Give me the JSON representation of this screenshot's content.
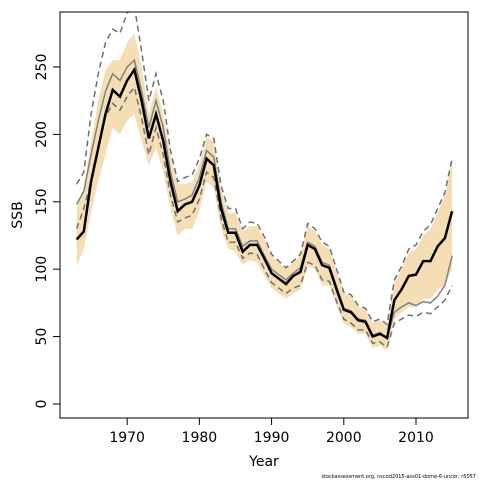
{
  "chart_data": {
    "type": "line",
    "x_label": "Year",
    "y_label": "SSB",
    "footnote": "stockassessment.org, nscod2015-ass01-dome-6-uncor, r5057",
    "x": [
      1963,
      1964,
      1965,
      1966,
      1967,
      1968,
      1969,
      1970,
      1971,
      1972,
      1973,
      1974,
      1975,
      1976,
      1977,
      1978,
      1979,
      1980,
      1981,
      1982,
      1983,
      1984,
      1985,
      1986,
      1987,
      1988,
      1989,
      1990,
      1991,
      1992,
      1993,
      1994,
      1995,
      1996,
      1997,
      1998,
      1999,
      2000,
      2001,
      2002,
      2003,
      2004,
      2005,
      2006,
      2007,
      2008,
      2009,
      2010,
      2011,
      2012,
      2013,
      2014,
      2015
    ],
    "band": {
      "color": "#f5deb3",
      "upper": [
        145,
        160,
        195,
        225,
        248,
        255,
        255,
        268,
        275,
        250,
        215,
        235,
        215,
        185,
        163,
        163,
        165,
        178,
        198,
        195,
        160,
        142,
        142,
        128,
        132,
        132,
        122,
        110,
        105,
        100,
        105,
        110,
        132,
        128,
        118,
        115,
        98,
        82,
        80,
        72,
        70,
        60,
        62,
        58,
        90,
        100,
        112,
        115,
        125,
        130,
        142,
        155,
        180
      ],
      "lower": [
        102,
        115,
        142,
        165,
        185,
        205,
        200,
        210,
        215,
        195,
        177,
        190,
        172,
        145,
        125,
        130,
        130,
        143,
        165,
        160,
        130,
        115,
        113,
        103,
        107,
        105,
        95,
        86,
        82,
        78,
        82,
        85,
        102,
        100,
        88,
        88,
        73,
        60,
        57,
        52,
        52,
        42,
        43,
        40,
        63,
        68,
        72,
        72,
        78,
        78,
        85,
        88,
        100
      ]
    },
    "series": [
      {
        "color": "#808080",
        "dash": false,
        "width": 1.5,
        "values": [
          148,
          158,
          185,
          210,
          232,
          245,
          240,
          250,
          255,
          232,
          205,
          225,
          205,
          172,
          150,
          152,
          155,
          168,
          188,
          183,
          150,
          130,
          130,
          117,
          121,
          121,
          110,
          100,
          96,
          92,
          97,
          101,
          120,
          117,
          105,
          103,
          87,
          71,
          69,
          63,
          62,
          51,
          53,
          49,
          68,
          72,
          75,
          73,
          76,
          75,
          80,
          88,
          110
        ]
      },
      {
        "color": "#707070",
        "dash": true,
        "width": 1.5,
        "values": [
          163,
          172,
          215,
          245,
          268,
          278,
          275,
          290,
          295,
          262,
          225,
          245,
          225,
          188,
          165,
          168,
          170,
          182,
          200,
          197,
          162,
          145,
          145,
          130,
          135,
          134,
          124,
          111,
          106,
          101,
          106,
          111,
          134,
          130,
          120,
          117,
          100,
          83,
          81,
          73,
          71,
          61,
          63,
          59,
          92,
          102,
          115,
          118,
          128,
          133,
          145,
          157,
          182
        ]
      },
      {
        "color": "#707070",
        "dash": true,
        "width": 1.5,
        "values": [
          130,
          145,
          165,
          190,
          213,
          223,
          218,
          228,
          235,
          212,
          185,
          205,
          185,
          155,
          135,
          138,
          140,
          152,
          172,
          168,
          138,
          120,
          120,
          108,
          112,
          111,
          100,
          90,
          86,
          82,
          86,
          88,
          105,
          103,
          92,
          91,
          76,
          63,
          60,
          55,
          55,
          45,
          46,
          42,
          60,
          63,
          66,
          65,
          68,
          67,
          72,
          77,
          88
        ]
      },
      {
        "color": "#000000",
        "dash": false,
        "width": 2.5,
        "values": [
          122,
          128,
          165,
          190,
          215,
          233,
          228,
          240,
          248,
          225,
          197,
          215,
          195,
          165,
          143,
          148,
          150,
          162,
          182,
          177,
          145,
          127,
          127,
          113,
          118,
          118,
          108,
          97,
          93,
          89,
          95,
          98,
          118,
          115,
          103,
          101,
          85,
          70,
          68,
          62,
          61,
          50,
          52,
          49,
          77,
          85,
          95,
          96,
          106,
          106,
          117,
          123,
          143
        ]
      }
    ],
    "xlim": [
      1960.7,
      2017.2
    ],
    "ylim": [
      -10.4,
      290.8
    ],
    "xticks": [
      1970,
      1980,
      1990,
      2000,
      2010
    ],
    "yticks": [
      0,
      50,
      100,
      150,
      200,
      250
    ]
  }
}
